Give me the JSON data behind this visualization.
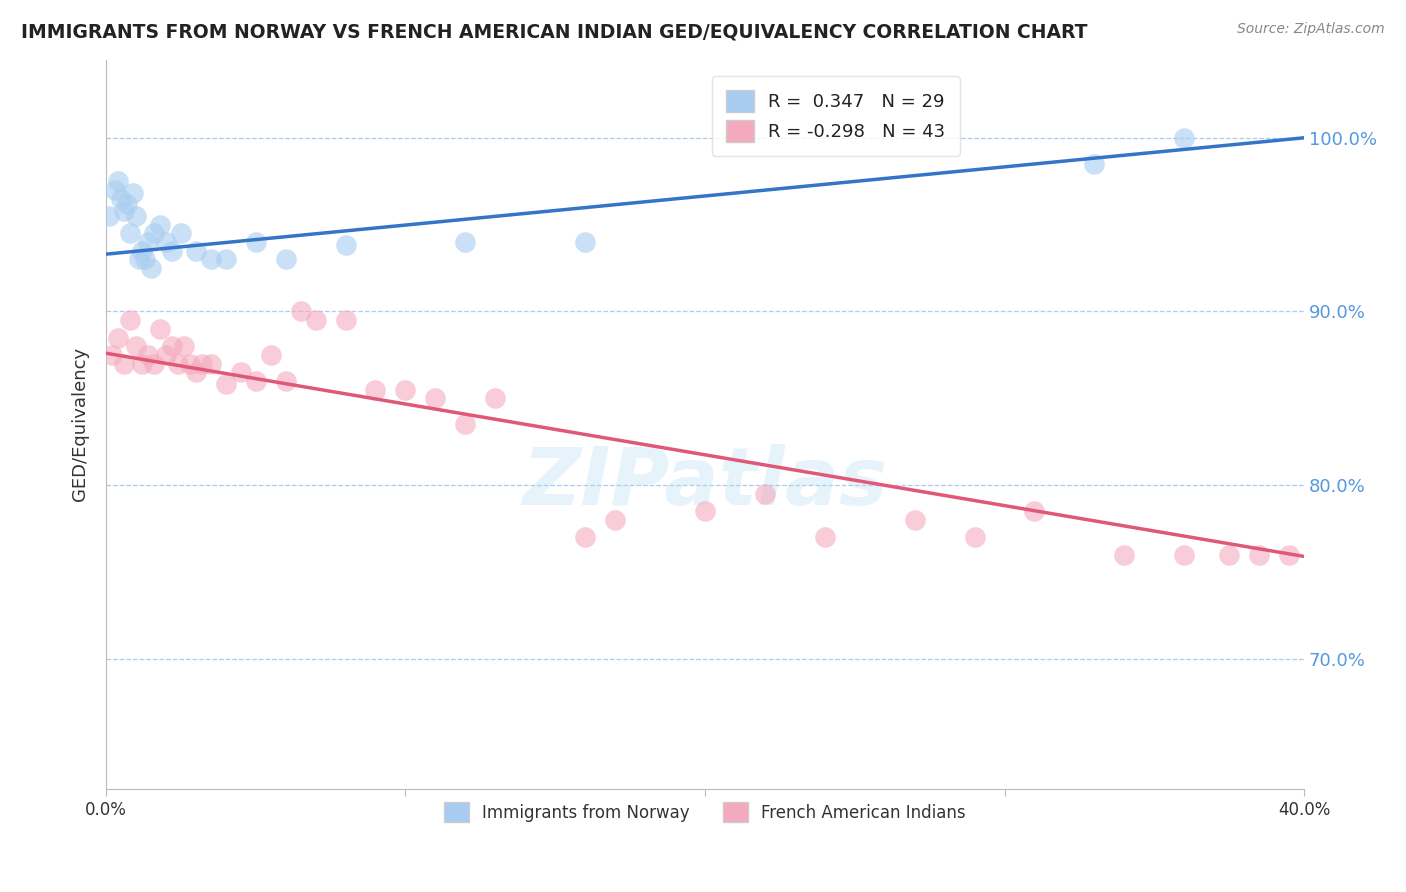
{
  "title": "IMMIGRANTS FROM NORWAY VS FRENCH AMERICAN INDIAN GED/EQUIVALENCY CORRELATION CHART",
  "source": "Source: ZipAtlas.com",
  "ylabel": "GED/Equivalency",
  "xlim": [
    0.0,
    0.4
  ],
  "ylim": [
    0.625,
    1.045
  ],
  "yticks": [
    0.7,
    0.8,
    0.9,
    1.0
  ],
  "ytick_labels": [
    "70.0%",
    "80.0%",
    "90.0%",
    "100.0%"
  ],
  "xticks": [
    0.0,
    0.1,
    0.2,
    0.3,
    0.4
  ],
  "xtick_labels": [
    "0.0%",
    "",
    "",
    "",
    "40.0%"
  ],
  "legend_label1": "Immigrants from Norway",
  "legend_label2": "French American Indians",
  "R1": 0.347,
  "N1": 29,
  "R2": -0.298,
  "N2": 43,
  "blue_color": "#A8CCF0",
  "pink_color": "#F4AABE",
  "blue_line_color": "#3575C8",
  "pink_line_color": "#E05878",
  "watermark": "ZIPatlas",
  "norway_x": [
    0.001,
    0.003,
    0.004,
    0.005,
    0.006,
    0.007,
    0.008,
    0.009,
    0.01,
    0.011,
    0.012,
    0.013,
    0.014,
    0.015,
    0.016,
    0.018,
    0.02,
    0.022,
    0.025,
    0.03,
    0.035,
    0.04,
    0.05,
    0.06,
    0.08,
    0.12,
    0.16,
    0.33,
    0.36
  ],
  "norway_y": [
    0.955,
    0.97,
    0.975,
    0.965,
    0.958,
    0.962,
    0.945,
    0.968,
    0.955,
    0.93,
    0.935,
    0.93,
    0.94,
    0.925,
    0.945,
    0.95,
    0.94,
    0.935,
    0.945,
    0.935,
    0.93,
    0.93,
    0.94,
    0.93,
    0.938,
    0.94,
    0.94,
    0.985,
    1.0
  ],
  "french_x": [
    0.002,
    0.004,
    0.006,
    0.008,
    0.01,
    0.012,
    0.014,
    0.016,
    0.018,
    0.02,
    0.022,
    0.024,
    0.026,
    0.028,
    0.03,
    0.032,
    0.035,
    0.04,
    0.045,
    0.05,
    0.055,
    0.06,
    0.065,
    0.07,
    0.08,
    0.09,
    0.1,
    0.11,
    0.12,
    0.13,
    0.16,
    0.17,
    0.2,
    0.22,
    0.24,
    0.27,
    0.29,
    0.31,
    0.34,
    0.36,
    0.375,
    0.385,
    0.395
  ],
  "french_y": [
    0.875,
    0.885,
    0.87,
    0.895,
    0.88,
    0.87,
    0.875,
    0.87,
    0.89,
    0.875,
    0.88,
    0.87,
    0.88,
    0.87,
    0.865,
    0.87,
    0.87,
    0.858,
    0.865,
    0.86,
    0.875,
    0.86,
    0.9,
    0.895,
    0.895,
    0.855,
    0.855,
    0.85,
    0.835,
    0.85,
    0.77,
    0.78,
    0.785,
    0.795,
    0.77,
    0.78,
    0.77,
    0.785,
    0.76,
    0.76,
    0.76,
    0.76,
    0.76
  ],
  "blue_trendline_x": [
    0.0,
    0.4
  ],
  "blue_trendline_y": [
    0.933,
    1.0
  ],
  "pink_trendline_x": [
    0.0,
    0.4
  ],
  "pink_trendline_y": [
    0.876,
    0.759
  ]
}
